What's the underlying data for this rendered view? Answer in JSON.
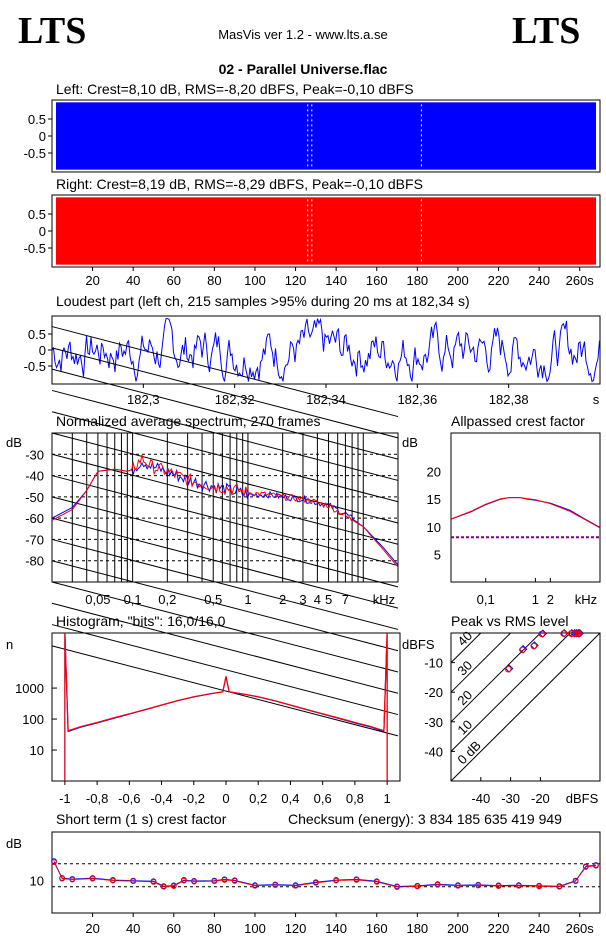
{
  "header": {
    "logo_left": "LTS",
    "logo_right": "LTS",
    "app_title": "MasVis ver 1.2 - www.lts.a.se",
    "file_title": "02 - Parallel Universe.flac"
  },
  "colors": {
    "left": "#0000ff",
    "right": "#ff0000",
    "axis": "#000000"
  },
  "chart_data": [
    {
      "id": "left",
      "type": "area",
      "title": "Left: Crest=8,10 dB, RMS=-8,20 dBFS, Peak=-0,10 dBFS",
      "yticks": [
        "0.5",
        "0",
        "-0.5"
      ],
      "ylim": [
        -1,
        1
      ],
      "xlim": [
        0,
        270
      ],
      "series": [
        {
          "values": [
            0.99,
            -0.99
          ]
        }
      ]
    },
    {
      "id": "right",
      "type": "area",
      "title": "Right: Crest=8,19 dB, RMS=-8,29 dBFS, Peak=-0,10 dBFS",
      "yticks": [
        "0.5",
        "0",
        "-0.5"
      ],
      "ylim": [
        -1,
        1
      ],
      "xlim": [
        0,
        270
      ],
      "xticks": [
        "20",
        "40",
        "60",
        "80",
        "100",
        "120",
        "140",
        "160",
        "180",
        "200",
        "220",
        "240",
        "260s"
      ],
      "series": [
        {
          "values": [
            0.99,
            -0.99
          ]
        }
      ]
    },
    {
      "id": "loudest",
      "type": "line",
      "title": "Loudest part (left  ch, 215 samples >95% during 20 ms at 182,34 s)",
      "yticks": [
        "0.5",
        "0",
        "-0.5"
      ],
      "ylim": [
        -1,
        1
      ],
      "xlim": [
        182.28,
        182.4
      ],
      "xticks": [
        "182,3",
        "182,32",
        "182,34",
        "182,36",
        "182,38",
        "s"
      ]
    },
    {
      "id": "spectrum",
      "type": "line",
      "title": "Normalized average spectrum, 270 frames",
      "ylabel": "dB",
      "yticks": [
        "-30",
        "-40",
        "-50",
        "-60",
        "-70",
        "-80"
      ],
      "xticks": [
        "0,05",
        "0,1",
        "0,2",
        "0,5",
        "1",
        "2",
        "3",
        "4",
        "5",
        "7",
        "kHz"
      ],
      "ylim": [
        -90,
        -20
      ],
      "x": [
        0.02,
        0.03,
        0.04,
        0.05,
        0.07,
        0.09,
        0.1,
        0.12,
        0.15,
        0.2,
        0.3,
        0.5,
        0.7,
        1,
        1.5,
        2,
        3,
        5,
        7,
        10,
        15,
        20
      ],
      "series": [
        {
          "values": [
            -60,
            -55,
            -47,
            -38,
            -37,
            -38,
            -37,
            -33,
            -36,
            -38,
            -42,
            -45,
            -47,
            -49,
            -49,
            -50,
            -51,
            -54,
            -58,
            -64,
            -74,
            -82
          ]
        },
        {
          "values": [
            -61,
            -56,
            -47,
            -38,
            -37,
            -38,
            -37,
            -32,
            -36,
            -38,
            -42,
            -45,
            -46,
            -48,
            -49,
            -50,
            -51,
            -54,
            -59,
            -64,
            -75,
            -83
          ]
        }
      ]
    },
    {
      "id": "allpass",
      "type": "line",
      "title": "Allpassed crest factor",
      "ylabel": "dB",
      "yticks": [
        "20",
        "15",
        "10",
        "5"
      ],
      "ylim": [
        0,
        27
      ],
      "xticks": [
        "0,1",
        "1",
        "2",
        "kHz"
      ],
      "x": [
        0.02,
        0.05,
        0.1,
        0.2,
        0.3,
        0.5,
        0.7,
        1,
        2,
        5,
        10,
        20
      ],
      "series": [
        {
          "values": [
            11.4,
            12.7,
            14.0,
            15.0,
            15.3,
            15.3,
            15.0,
            14.8,
            14.3,
            13.0,
            11.4,
            9.9
          ]
        },
        {
          "values": [
            11.4,
            12.8,
            14.1,
            15.1,
            15.3,
            15.3,
            15.1,
            14.9,
            14.2,
            12.8,
            11.3,
            9.8
          ]
        }
      ],
      "reference_line": 8.1
    },
    {
      "id": "histogram",
      "type": "line",
      "title": "Histogram, \"bits\": 16,0/16,0",
      "ylabel": "n",
      "yticks": [
        "1000",
        "100",
        "10"
      ],
      "xticks": [
        "-1",
        "-0,8",
        "-0,6",
        "-0,4",
        "-0,2",
        "0",
        "0,2",
        "0,4",
        "0,6",
        "0,8",
        "1"
      ],
      "ylim": [
        1,
        60000
      ],
      "x": [
        -0.98,
        -0.9,
        -0.8,
        -0.7,
        -0.6,
        -0.5,
        -0.4,
        -0.3,
        -0.2,
        -0.1,
        -0.02,
        0,
        0.02,
        0.1,
        0.2,
        0.3,
        0.4,
        0.5,
        0.6,
        0.7,
        0.8,
        0.9,
        0.98
      ],
      "series": [
        {
          "values": [
            40,
            55,
            75,
            105,
            145,
            200,
            280,
            390,
            520,
            650,
            750,
            2300,
            750,
            650,
            520,
            390,
            280,
            200,
            145,
            105,
            75,
            55,
            40
          ]
        },
        {
          "values": [
            42,
            57,
            78,
            108,
            148,
            205,
            285,
            395,
            525,
            655,
            760,
            2400,
            760,
            655,
            525,
            395,
            285,
            205,
            148,
            108,
            78,
            57,
            42
          ]
        }
      ]
    },
    {
      "id": "peak_rms",
      "type": "scatter",
      "title": "Peak vs RMS level",
      "ylabel": "dBFS",
      "xlabel": "dBFS",
      "yticks": [
        "-10",
        "-20",
        "-30",
        "-40"
      ],
      "xticks": [
        "-40",
        "-30",
        "-20"
      ],
      "diagonal_labels": [
        "40",
        "30",
        "20",
        "10",
        "0 dB"
      ],
      "xlim": [
        -50,
        0
      ],
      "ylim": [
        -50,
        0
      ],
      "series": [
        {
          "x": [
            -30.5,
            -25.8,
            -22.0,
            -19.2,
            -12.0,
            -9.5,
            -8.5,
            -7.8,
            -7.2,
            -6.8
          ],
          "y": [
            -12.0,
            -5.5,
            -4.2,
            -0.2,
            -0.1,
            -0.1,
            -0.1,
            -0.1,
            -0.1,
            -0.1
          ]
        },
        {
          "x": [
            -30.8,
            -26.0,
            -22.2,
            -19.5,
            -12.2,
            -9.7,
            -8.7,
            -8.0,
            -7.4,
            -7.0
          ],
          "y": [
            -12.2,
            -5.7,
            -4.4,
            -0.3,
            -0.2,
            -0.2,
            -0.2,
            -0.2,
            -0.2,
            -0.2
          ]
        }
      ]
    },
    {
      "id": "shortterm",
      "type": "scatter",
      "title": "Short term (1 s) crest factor",
      "checksum": "Checksum (energy):  3 834 185 635 419 949",
      "ylabel": "dB",
      "yticks": [
        "10"
      ],
      "xticks": [
        "20",
        "40",
        "60",
        "80",
        "100",
        "120",
        "140",
        "160",
        "180",
        "200",
        "220",
        "240",
        "260s"
      ],
      "xlim": [
        0,
        270
      ],
      "ylim": [
        0,
        25
      ],
      "ref_lines": [
        15.2,
        8.1
      ],
      "x": [
        1,
        5,
        10,
        20,
        30,
        40,
        50,
        55,
        60,
        65,
        70,
        80,
        85,
        90,
        100,
        110,
        120,
        130,
        140,
        150,
        160,
        170,
        180,
        190,
        200,
        210,
        220,
        230,
        240,
        250,
        258,
        263,
        268
      ],
      "series": [
        {
          "values": [
            16,
            10.8,
            10.5,
            10.8,
            10.2,
            10.0,
            9.8,
            8.3,
            8.5,
            10.2,
            9.9,
            10.0,
            10.4,
            10.1,
            8.6,
            8.8,
            8.6,
            9.5,
            10.2,
            10.4,
            9.8,
            8.2,
            8.4,
            8.9,
            8.6,
            8.7,
            8.5,
            8.6,
            8.4,
            8.3,
            10.0,
            14.4,
            14.8
          ]
        },
        {
          "values": [
            15.7,
            10.6,
            10.3,
            10.6,
            10.0,
            9.8,
            9.6,
            8.1,
            8.3,
            10.0,
            9.7,
            9.8,
            10.2,
            9.9,
            8.4,
            8.6,
            8.4,
            9.3,
            10.0,
            10.2,
            9.6,
            8.0,
            8.2,
            8.7,
            8.4,
            8.5,
            8.3,
            8.4,
            8.2,
            8.1,
            9.8,
            14.2,
            14.6
          ]
        }
      ]
    }
  ]
}
